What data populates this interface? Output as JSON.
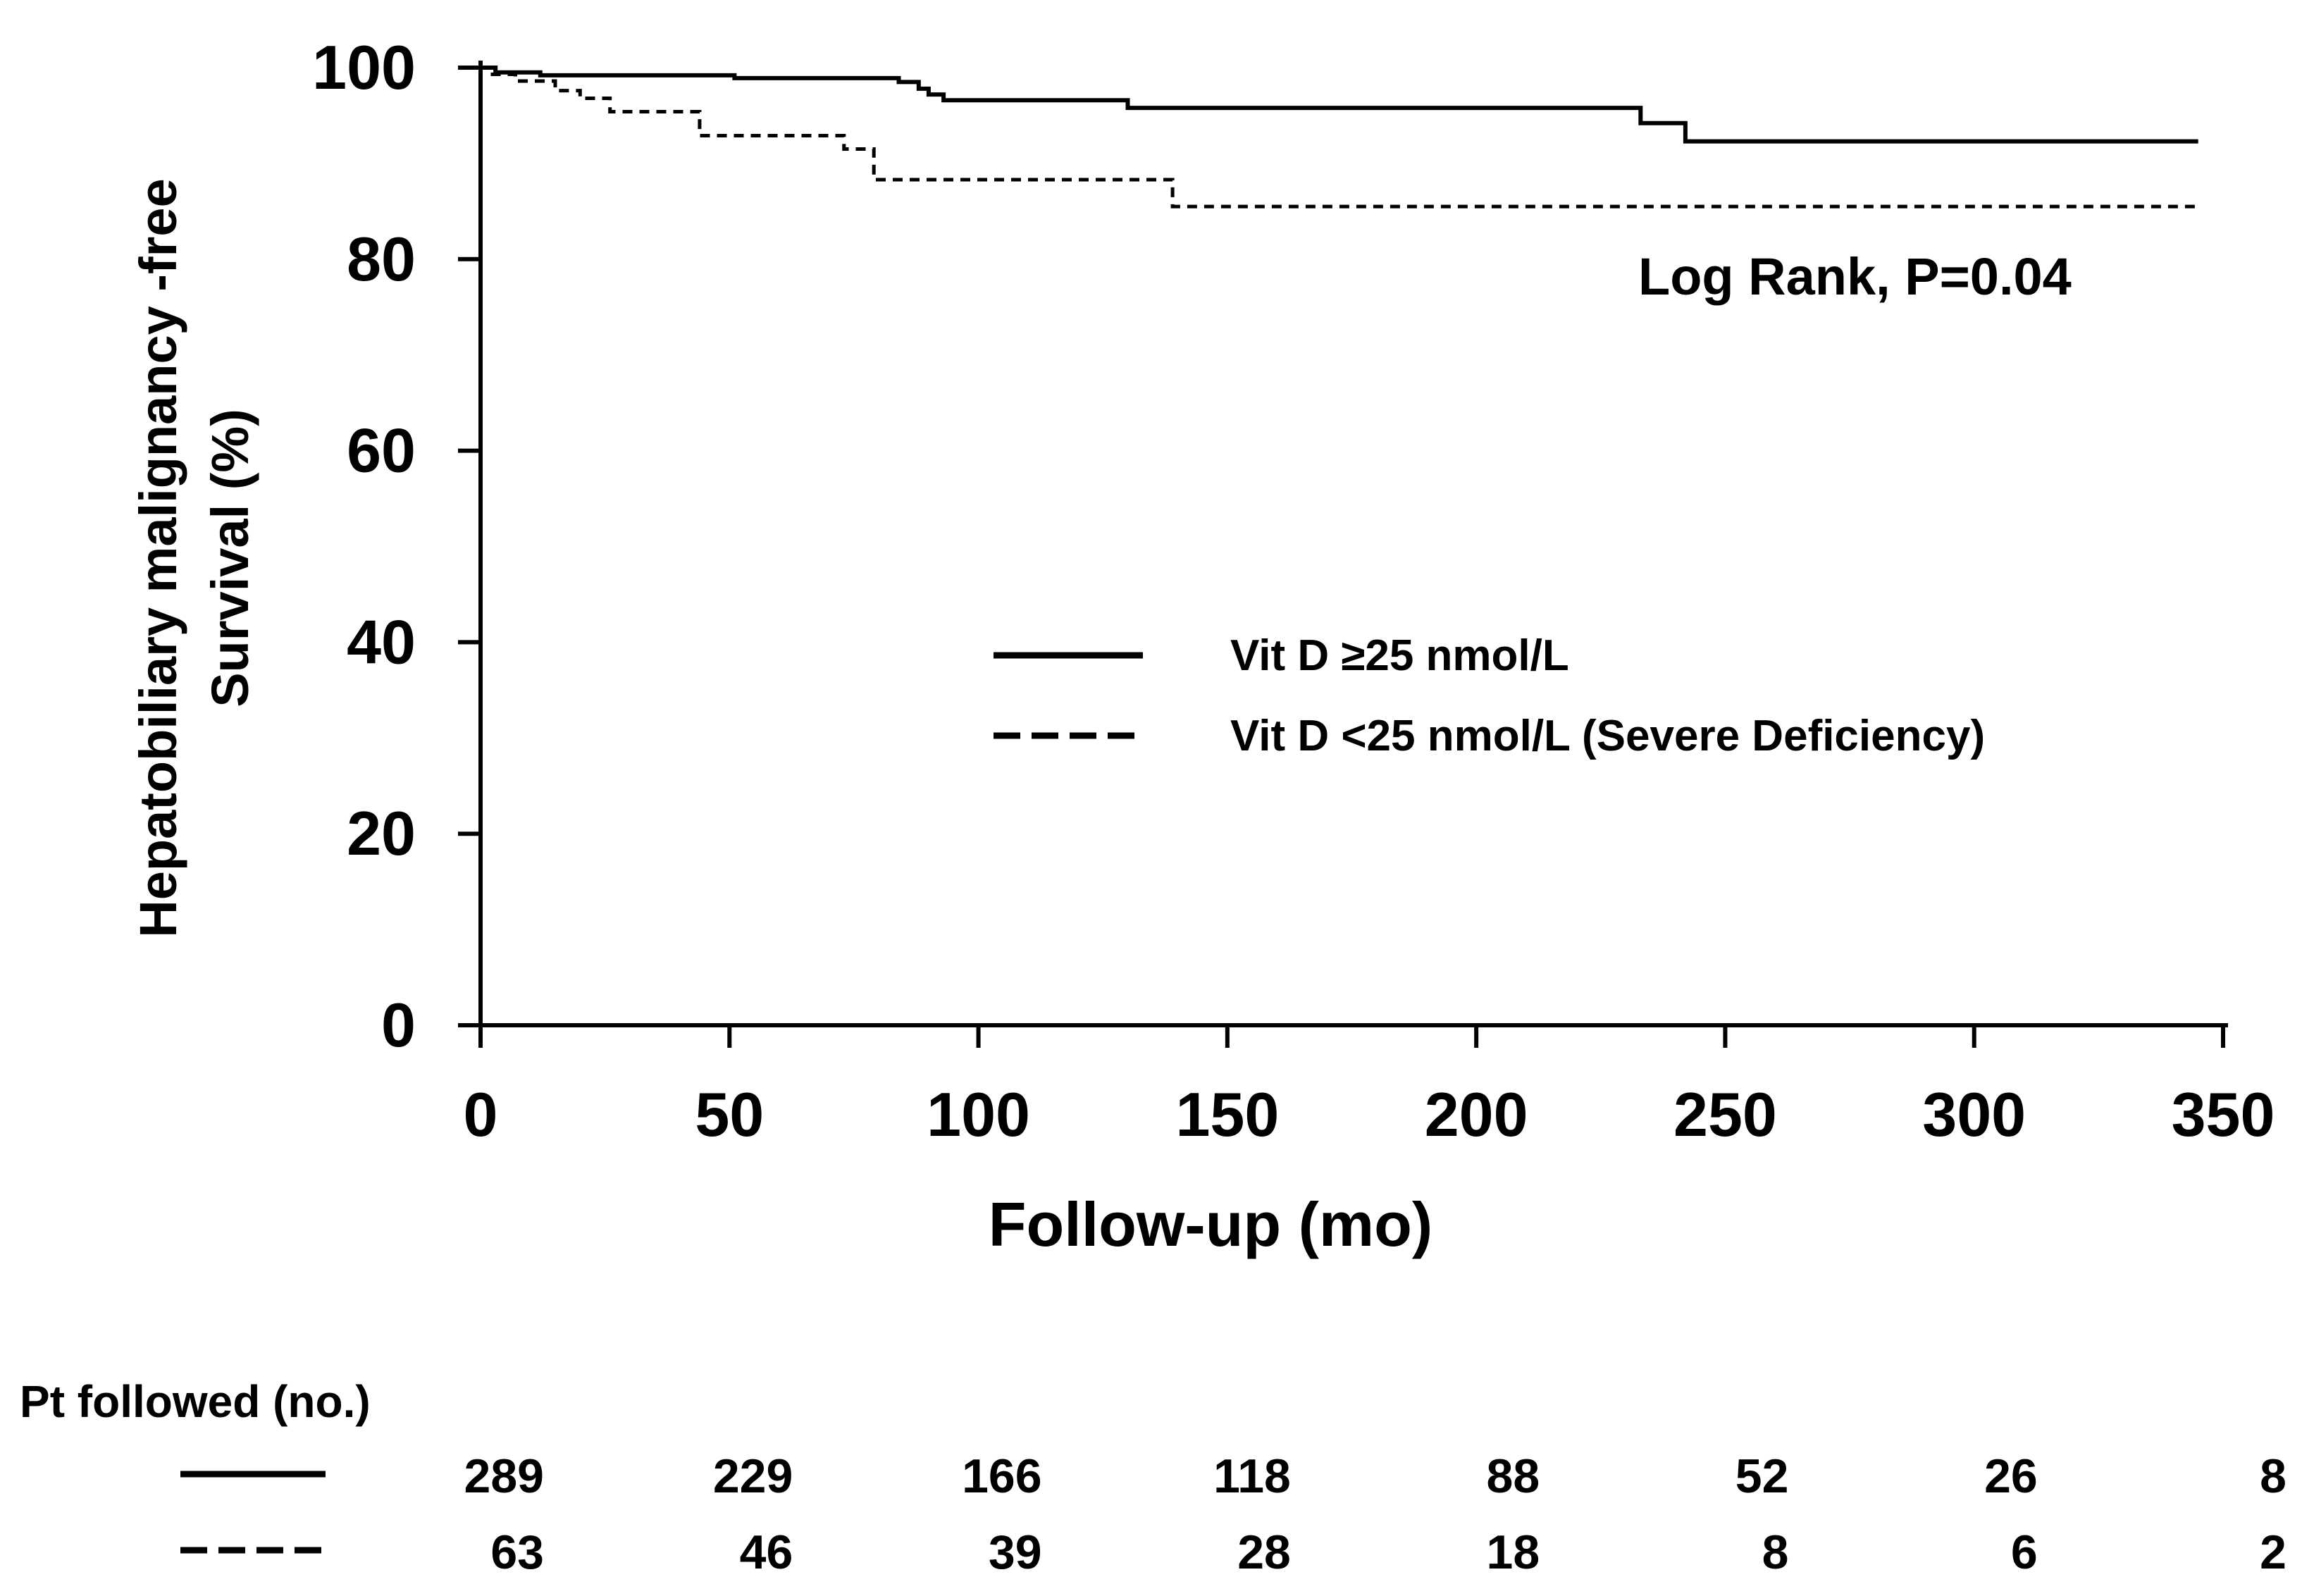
{
  "chart_data": {
    "type": "line",
    "subtype": "kaplan-meier",
    "ylabel_line1": "Hepatobiliary malignancy -free",
    "ylabel_line2": "Survival (%)",
    "xlabel": "Follow-up (mo)",
    "xlim": [
      0,
      350
    ],
    "ylim": [
      0,
      100
    ],
    "x_ticks": [
      0,
      50,
      100,
      150,
      200,
      250,
      300,
      350
    ],
    "y_ticks": [
      0,
      20,
      40,
      60,
      80,
      100
    ],
    "grid": false,
    "annotation": "Log Rank, P=0.04",
    "legend_position": "center-right",
    "series": [
      {
        "name": "Vit D ≥25 nmol/L",
        "style": "solid",
        "points": [
          [
            0,
            100
          ],
          [
            3,
            100
          ],
          [
            3,
            99.5
          ],
          [
            12,
            99.5
          ],
          [
            12,
            99.2
          ],
          [
            51,
            99.2
          ],
          [
            51,
            98.9
          ],
          [
            84,
            98.9
          ],
          [
            84,
            98.5
          ],
          [
            88,
            98.5
          ],
          [
            88,
            97.8
          ],
          [
            90,
            97.8
          ],
          [
            90,
            97.2
          ],
          [
            93,
            97.2
          ],
          [
            93,
            96.6
          ],
          [
            130,
            96.6
          ],
          [
            130,
            95.8
          ],
          [
            233,
            95.8
          ],
          [
            233,
            94.2
          ],
          [
            242,
            94.2
          ],
          [
            242,
            92.3
          ],
          [
            345,
            92.3
          ]
        ]
      },
      {
        "name": "Vit D <25 nmol/L (Severe Deficiency)",
        "style": "dashed",
        "points": [
          [
            0,
            100
          ],
          [
            2,
            100
          ],
          [
            2,
            99.3
          ],
          [
            7,
            99.3
          ],
          [
            7,
            98.6
          ],
          [
            15,
            98.6
          ],
          [
            15,
            97.6
          ],
          [
            20,
            97.6
          ],
          [
            20,
            96.8
          ],
          [
            26,
            96.8
          ],
          [
            26,
            95.4
          ],
          [
            44,
            95.4
          ],
          [
            44,
            92.9
          ],
          [
            73,
            92.9
          ],
          [
            73,
            91.5
          ],
          [
            79,
            91.5
          ],
          [
            79,
            88.3
          ],
          [
            139,
            88.3
          ],
          [
            139,
            85.5
          ],
          [
            345,
            85.5
          ]
        ]
      }
    ],
    "risk_table": {
      "title": "Pt followed (no.)",
      "rows": [
        {
          "style": "solid",
          "values": [
            "289",
            "229",
            "166",
            "118",
            "88",
            "52",
            "26",
            "8"
          ]
        },
        {
          "style": "dashed",
          "values": [
            "63",
            "46",
            "39",
            "28",
            "18",
            "8",
            "6",
            "2"
          ]
        }
      ]
    }
  }
}
